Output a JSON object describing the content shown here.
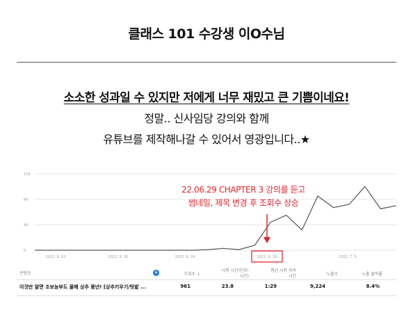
{
  "header": {
    "title": "클래스 101 수강생 이O수님"
  },
  "quote": {
    "headline": "소소한 성과일 수 있지만 저에게 너무 재밌고 큰 기쁨이네요!",
    "line2": "정말.. 신사임당 강의와 함께",
    "line3": "유튜브를 제작해나갈 수 있어서 영광입니다..★"
  },
  "annotation": {
    "line1": "22.06.29 CHAPTER 3 강의를 듣고",
    "line2": "썸네일, 제목 변경 후 조회수 상승",
    "color": "#e3262b"
  },
  "chart_data": {
    "type": "line",
    "y_ticks": [
      "120",
      "80",
      "40",
      "0"
    ],
    "x_ticks": [
      "2022. 6. 15",
      "2022. 6. 20",
      "2022. 6. 24",
      "2022. 6. 29",
      "2022. 7. 5"
    ],
    "ylim": [
      0,
      120
    ],
    "highlight_tick": "2022. 6. 29",
    "series": [
      {
        "values": [
          0,
          0,
          0,
          0,
          0,
          0,
          0,
          0,
          0,
          0,
          0,
          1,
          3,
          1,
          8,
          44,
          55,
          32,
          85,
          67,
          72,
          100,
          65,
          70
        ]
      }
    ]
  },
  "table": {
    "headers": {
      "content": "콘텐츠",
      "views": "조회수 ↓",
      "watch_time": "시청 시간(단위:\n시간)",
      "avg_duration": "평균 시청 지속\n시간",
      "impressions": "노출수",
      "ctr": "노출 클릭률"
    },
    "row": {
      "title": "이것만 알면 조보농부도 올해 상추 풍년! [상추키우기/텃밭 ...",
      "views": "961",
      "watch_time": "23.8",
      "avg_duration": "1:29",
      "impressions": "9,224",
      "ctr": "8.4%"
    }
  }
}
